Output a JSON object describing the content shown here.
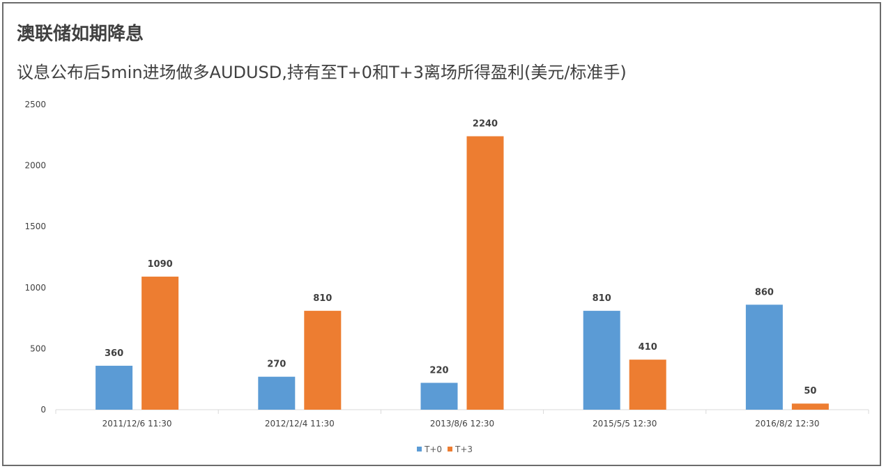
{
  "title": "澳联储如期降息",
  "subtitle": "议息公布后5min进场做多AUDUSD,持有至T+0和T+3离场所得盈利(美元/标准手)",
  "chart_data": {
    "type": "bar",
    "title": "澳联储如期降息",
    "subtitle": "议息公布后5min进场做多AUDUSD,持有至T+0和T+3离场所得盈利(美元/标准手)",
    "categories": [
      "2011/12/6 11:30",
      "2012/12/4 11:30",
      "2013/8/6 12:30",
      "2015/5/5 12:30",
      "2016/8/2 12:30"
    ],
    "series": [
      {
        "name": "T+0",
        "values": [
          360,
          270,
          220,
          810,
          860
        ],
        "color": "#5b9bd5"
      },
      {
        "name": "T+3",
        "values": [
          1090,
          810,
          2240,
          410,
          50
        ],
        "color": "#ed7d31"
      }
    ],
    "yticks": [
      "0",
      "500",
      "1000",
      "1500",
      "2000",
      "2500"
    ],
    "ylim": [
      0,
      2500
    ],
    "grid": false,
    "legend": "bottom",
    "data_labels": true
  }
}
